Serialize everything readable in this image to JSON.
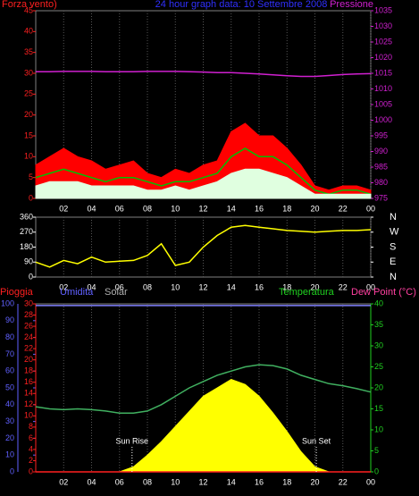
{
  "chart_data": [
    {
      "type": "line",
      "title": "24 hour graph data: 10 Settembre 2008",
      "left_label": "Forza vento)",
      "right_label": "Pressione",
      "title_color": "#3030ff",
      "left_label_color": "#ff2020",
      "right_label_color": "#d020d0",
      "x": [
        0,
        1,
        2,
        3,
        4,
        5,
        6,
        7,
        8,
        9,
        10,
        11,
        12,
        13,
        14,
        15,
        16,
        17,
        18,
        19,
        20,
        21,
        22,
        23,
        24
      ],
      "xlim": [
        0,
        24
      ],
      "xticks": [
        {
          "value": 2,
          "label": "02"
        },
        {
          "value": 4,
          "label": "04"
        },
        {
          "value": 6,
          "label": "06"
        },
        {
          "value": 8,
          "label": "08"
        },
        {
          "value": 10,
          "label": "10"
        },
        {
          "value": 12,
          "label": "12"
        },
        {
          "value": 14,
          "label": "14"
        },
        {
          "value": 16,
          "label": "16"
        },
        {
          "value": 18,
          "label": "18"
        },
        {
          "value": 20,
          "label": "20"
        },
        {
          "value": 22,
          "label": "22"
        },
        {
          "value": 0,
          "label": "00"
        }
      ],
      "xtick_positions": [
        2,
        4,
        6,
        8,
        10,
        12,
        14,
        16,
        18,
        20,
        22,
        24
      ],
      "ylim": [
        0,
        45
      ],
      "yticks": [
        0,
        5,
        10,
        15,
        20,
        25,
        30,
        35,
        40,
        45
      ],
      "ytick_color": "#ff2020",
      "y2lim": [
        975,
        1035
      ],
      "y2ticks": [
        975,
        980,
        985,
        990,
        995,
        1000,
        1005,
        1010,
        1015,
        1020,
        1025,
        1030,
        1035
      ],
      "y2tick_color": "#d020d0",
      "grid": true,
      "series": [
        {
          "color": "#ff0000",
          "area": true,
          "values": [
            8,
            10,
            12,
            10,
            9,
            7,
            8,
            9,
            6,
            5,
            7,
            6,
            8,
            9,
            16,
            18,
            15,
            15,
            12,
            8,
            3,
            2,
            3,
            3,
            2
          ]
        },
        {
          "color": "#00c000",
          "values": [
            5,
            6,
            7,
            6,
            5,
            4,
            5,
            5,
            4,
            3,
            4,
            4,
            5,
            6,
            10,
            12,
            10,
            10,
            8,
            5,
            2,
            1,
            2,
            2,
            1
          ]
        },
        {
          "color": "#e0ffe0",
          "area": true,
          "values": [
            3,
            4,
            4,
            4,
            3,
            3,
            3,
            3,
            2,
            2,
            3,
            2,
            3,
            4,
            6,
            7,
            7,
            6,
            5,
            3,
            1,
            1,
            1,
            1,
            1
          ]
        },
        {
          "color": "#d020d0",
          "axis": "y2",
          "values": [
            1015.5,
            1015.5,
            1015.6,
            1015.6,
            1015.6,
            1015.5,
            1015.5,
            1015.5,
            1015.6,
            1015.6,
            1015.6,
            1015.5,
            1015.4,
            1015.2,
            1015.2,
            1015,
            1014.8,
            1014.5,
            1014.2,
            1014,
            1014,
            1014.3,
            1014.6,
            1014.8,
            1014.9
          ]
        }
      ]
    },
    {
      "type": "line",
      "x": [
        0,
        1,
        2,
        3,
        4,
        5,
        6,
        7,
        8,
        9,
        10,
        11,
        12,
        13,
        14,
        15,
        16,
        17,
        18,
        19,
        20,
        21,
        22,
        23,
        24
      ],
      "xlim": [
        0,
        24
      ],
      "xticks": [
        {
          "value": 2,
          "label": "02"
        },
        {
          "value": 4,
          "label": "04"
        },
        {
          "value": 6,
          "label": "06"
        },
        {
          "value": 8,
          "label": "08"
        },
        {
          "value": 10,
          "label": "10"
        },
        {
          "value": 12,
          "label": "12"
        },
        {
          "value": 14,
          "label": "14"
        },
        {
          "value": 16,
          "label": "16"
        },
        {
          "value": 18,
          "label": "18"
        },
        {
          "value": 20,
          "label": "20"
        },
        {
          "value": 22,
          "label": "22"
        },
        {
          "value": 0,
          "label": "00"
        }
      ],
      "xtick_positions": [
        2,
        4,
        6,
        8,
        10,
        12,
        14,
        16,
        18,
        20,
        22,
        24
      ],
      "ylim": [
        0,
        360
      ],
      "yticks": [
        0,
        90,
        180,
        270,
        360
      ],
      "ytick_color": "#ffffff",
      "y2lim": [
        0,
        360
      ],
      "y2ticks": [
        {
          "value": 0,
          "label": "N"
        },
        {
          "value": 90,
          "label": "E"
        },
        {
          "value": 180,
          "label": "S"
        },
        {
          "value": 270,
          "label": "W"
        },
        {
          "value": 360,
          "label": "N"
        }
      ],
      "y2tick_color": "#ffffff",
      "grid": true,
      "series": [
        {
          "color": "#ffff00",
          "values": [
            90,
            60,
            100,
            80,
            120,
            90,
            95,
            100,
            130,
            200,
            70,
            90,
            180,
            250,
            300,
            310,
            300,
            290,
            280,
            275,
            270,
            275,
            280,
            280,
            285
          ]
        }
      ]
    },
    {
      "type": "line",
      "labels": [
        "Pioggia",
        "Umidita",
        "Solar",
        "Temperatura",
        "Dew Point (°C)"
      ],
      "label_colors": [
        "#ff2020",
        "#6060ff",
        "#b0b0b0",
        "#20d020",
        "#ff40a0"
      ],
      "annotations": [
        {
          "text": "Sun Rise",
          "x": 6.9
        },
        {
          "text": "Sun Set",
          "x": 20.1
        }
      ],
      "x": [
        0,
        1,
        2,
        3,
        4,
        5,
        6,
        7,
        8,
        9,
        10,
        11,
        12,
        13,
        14,
        15,
        16,
        17,
        18,
        19,
        20,
        21,
        22,
        23,
        24
      ],
      "xlim": [
        0,
        24
      ],
      "xticks": [
        {
          "value": 2,
          "label": "02"
        },
        {
          "value": 4,
          "label": "04"
        },
        {
          "value": 6,
          "label": "06"
        },
        {
          "value": 8,
          "label": "08"
        },
        {
          "value": 10,
          "label": "10"
        },
        {
          "value": 12,
          "label": "12"
        },
        {
          "value": 14,
          "label": "14"
        },
        {
          "value": 16,
          "label": "16"
        },
        {
          "value": 18,
          "label": "18"
        },
        {
          "value": 20,
          "label": "20"
        },
        {
          "value": 22,
          "label": "22"
        },
        {
          "value": 0,
          "label": "00"
        }
      ],
      "xtick_positions": [
        2,
        4,
        6,
        8,
        10,
        12,
        14,
        16,
        18,
        20,
        22,
        24
      ],
      "ylim": [
        0,
        100
      ],
      "yticks": [
        0,
        10,
        20,
        30,
        40,
        50,
        60,
        70,
        80,
        90,
        100
      ],
      "ytick_color": "#6060ff",
      "y3lim": [
        0,
        30
      ],
      "y3ticks": [
        0,
        2,
        4,
        6,
        8,
        10,
        12,
        14,
        16,
        18,
        20,
        22,
        24,
        26,
        28,
        30
      ],
      "y3tick_color": "#ff2020",
      "y2lim": [
        0,
        40
      ],
      "y2ticks": [
        0,
        5,
        10,
        15,
        20,
        25,
        30,
        35,
        40
      ],
      "y2tick_color": "#20d020",
      "grid": true,
      "series": [
        {
          "color": "#ffff00",
          "area": true,
          "values": [
            0,
            0,
            0,
            0,
            0,
            0,
            0,
            3,
            10,
            18,
            27,
            36,
            45,
            50,
            55,
            52,
            45,
            35,
            24,
            12,
            3,
            0,
            0,
            0,
            0
          ]
        },
        {
          "color": "#8080ff",
          "values": [
            99,
            99,
            99,
            99,
            99,
            99,
            99,
            99,
            99,
            99,
            99,
            99,
            99,
            99,
            99,
            99,
            99,
            99,
            99,
            99,
            99,
            99,
            99,
            99,
            99
          ]
        },
        {
          "color": "#ff2020",
          "axis": "y3",
          "values": [
            0,
            0,
            0,
            0,
            0,
            0,
            0,
            0,
            0,
            0,
            0,
            0,
            0,
            0,
            0,
            0,
            0,
            0,
            0,
            0,
            0,
            0,
            0,
            0,
            0
          ]
        },
        {
          "color": "#40b060",
          "axis": "y2",
          "values": [
            15.5,
            15,
            14.8,
            15,
            14.8,
            14.5,
            14,
            14,
            14.5,
            16,
            18,
            20,
            21.5,
            23,
            24,
            25,
            25.5,
            25.3,
            24.5,
            23,
            22,
            21,
            20.5,
            19.8,
            19
          ]
        }
      ]
    }
  ]
}
